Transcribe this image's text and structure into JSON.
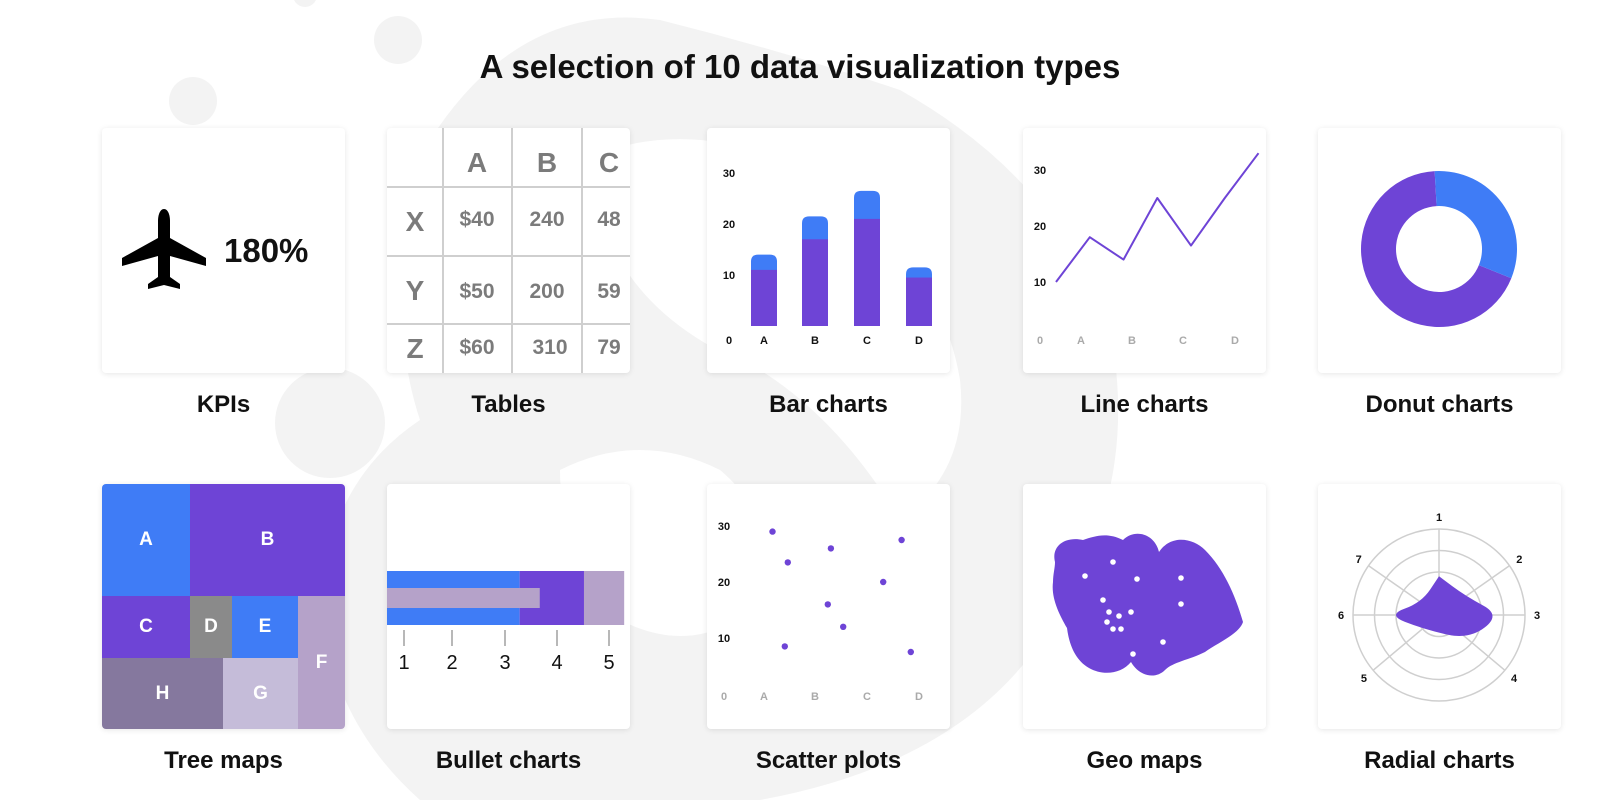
{
  "title": "A selection of 10 data visualization types",
  "colors": {
    "purple": "#6e44d6",
    "blue": "#3f7cf6",
    "lavender": "#b5a2c9",
    "grey": "#8a8a8a",
    "muted_purple": "#85789e",
    "light_lavender": "#c5bcd9",
    "text_grey": "#7b7b7b"
  },
  "cards": [
    {
      "label": "KPIs"
    },
    {
      "label": "Tables"
    },
    {
      "label": "Bar charts"
    },
    {
      "label": "Line charts"
    },
    {
      "label": "Donut charts"
    },
    {
      "label": "Tree maps"
    },
    {
      "label": "Bullet charts"
    },
    {
      "label": "Scatter plots"
    },
    {
      "label": "Geo maps"
    },
    {
      "label": "Radial charts"
    }
  ],
  "kpi": {
    "icon": "airplane-icon",
    "value": "180%"
  },
  "table": {
    "columns": [
      "A",
      "B",
      "C"
    ],
    "rows": [
      {
        "label": "X",
        "cells": [
          "$40",
          "240",
          "48"
        ]
      },
      {
        "label": "Y",
        "cells": [
          "$50",
          "200",
          "59"
        ]
      },
      {
        "label": "Z",
        "cells": [
          "$60",
          "310",
          "79"
        ]
      }
    ]
  },
  "treemap": {
    "cells": [
      {
        "label": "A",
        "color": "#3f7cf6"
      },
      {
        "label": "B",
        "color": "#6e44d6"
      },
      {
        "label": "C",
        "color": "#6e44d6"
      },
      {
        "label": "D",
        "color": "#8a8a8a"
      },
      {
        "label": "E",
        "color": "#3f7cf6"
      },
      {
        "label": "F",
        "color": "#b5a2c9"
      },
      {
        "label": "H",
        "color": "#85789e"
      },
      {
        "label": "G",
        "color": "#c5bcd9"
      }
    ]
  },
  "chart_data": [
    {
      "type": "bar",
      "categories": [
        "A",
        "B",
        "C",
        "D"
      ],
      "series": [
        {
          "values": [
            11,
            17,
            21,
            9.5
          ],
          "color": "#6e44d6"
        },
        {
          "values": [
            3,
            4.5,
            5.5,
            2
          ],
          "color": "#3f7cf6"
        }
      ],
      "yticks": [
        "0",
        "10",
        "20",
        "30"
      ],
      "ylim": [
        0,
        30
      ],
      "stacked": true
    },
    {
      "type": "line",
      "x": [
        0,
        0.75,
        1.5,
        2.25,
        3,
        3.75,
        4.5
      ],
      "y": [
        10,
        18,
        14,
        25,
        16.5,
        25,
        33
      ],
      "categories": [
        "A",
        "B",
        "C",
        "D"
      ],
      "yticks": [
        "0",
        "10",
        "20",
        "30"
      ],
      "ylim": [
        0,
        30
      ],
      "color": "#6e44d6"
    },
    {
      "type": "pie",
      "donut": true,
      "values": [
        68,
        32
      ],
      "colors": [
        "#6e44d6",
        "#3f7cf6"
      ]
    },
    {
      "type": "bar",
      "variant": "bullet",
      "ticks": [
        "1",
        "2",
        "3",
        "4",
        "5"
      ],
      "ranges": [
        {
          "from": 0,
          "to": 3.3,
          "color": "#3f7cf6"
        },
        {
          "from": 3.3,
          "to": 4.9,
          "color": "#6e44d6"
        },
        {
          "from": 4.9,
          "to": 5.9,
          "color": "#b5a2c9"
        }
      ],
      "measure": 3.8,
      "measure_color": "#b5a2c9"
    },
    {
      "type": "scatter",
      "categories": [
        "A",
        "B",
        "C",
        "D"
      ],
      "yticks": [
        "0",
        "10",
        "20",
        "30"
      ],
      "ylim": [
        0,
        30
      ],
      "points": [
        [
          0.3,
          29
        ],
        [
          0.55,
          23.5
        ],
        [
          0.5,
          8.5
        ],
        [
          1.25,
          26
        ],
        [
          1.2,
          16
        ],
        [
          1.45,
          12
        ],
        [
          2.1,
          20
        ],
        [
          2.4,
          27.5
        ],
        [
          2.55,
          7.5
        ]
      ],
      "color": "#6e44d6"
    },
    {
      "type": "area",
      "variant": "radar",
      "axes": [
        "1",
        "2",
        "3",
        "4",
        "5",
        "6",
        "7"
      ],
      "values": [
        0.45,
        0.38,
        0.72,
        0.45,
        0.25,
        0.6,
        0.25
      ],
      "color": "#6e44d6"
    }
  ],
  "geo": {
    "color": "#6e44d6"
  }
}
